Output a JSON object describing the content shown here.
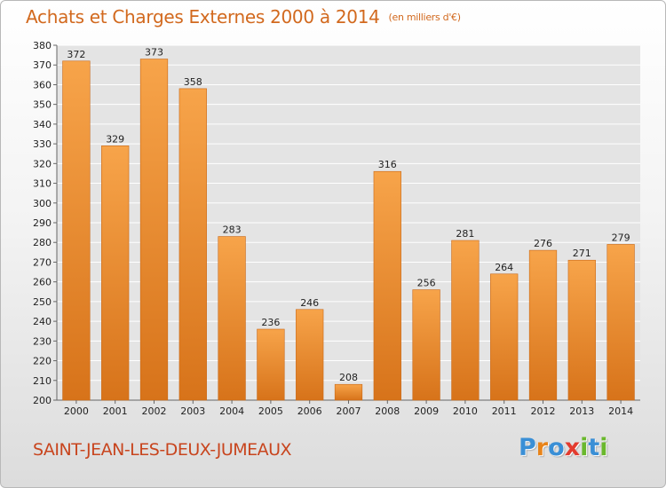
{
  "header": {
    "title": "Achats et Charges Externes 2000 à 2014",
    "subtitle": "(en milliers d'€)"
  },
  "footer": {
    "commune": "SAINT-JEAN-LES-DEUX-JUMEAUX",
    "logo": {
      "letters": [
        "P",
        "r",
        "o",
        "x",
        "i",
        "t",
        "i"
      ],
      "colors": [
        "#3a8fd6",
        "#e8841a",
        "#3a8fd6",
        "#e33b2e",
        "#6ab82d",
        "#3a8fd6",
        "#6ab82d"
      ]
    }
  },
  "chart_data": {
    "type": "bar",
    "title": "Achats et Charges Externes 2000 à 2014",
    "subtitle": "(en milliers d'€)",
    "categories": [
      "2000",
      "2001",
      "2002",
      "2003",
      "2004",
      "2005",
      "2006",
      "2007",
      "2008",
      "2009",
      "2010",
      "2011",
      "2012",
      "2013",
      "2014"
    ],
    "values": [
      372,
      329,
      373,
      358,
      283,
      236,
      246,
      208,
      316,
      256,
      281,
      264,
      276,
      271,
      279
    ],
    "ylim": [
      200,
      380
    ],
    "yticks": [
      200,
      210,
      220,
      230,
      240,
      250,
      260,
      270,
      280,
      290,
      300,
      310,
      320,
      330,
      340,
      350,
      360,
      370,
      380
    ],
    "xlabel": "",
    "ylabel": "",
    "grid": true,
    "bar_color": "#f0952f",
    "bar_color_dark": "#d9761b",
    "plot_background": "#e4e4e4",
    "data_labels": true
  }
}
